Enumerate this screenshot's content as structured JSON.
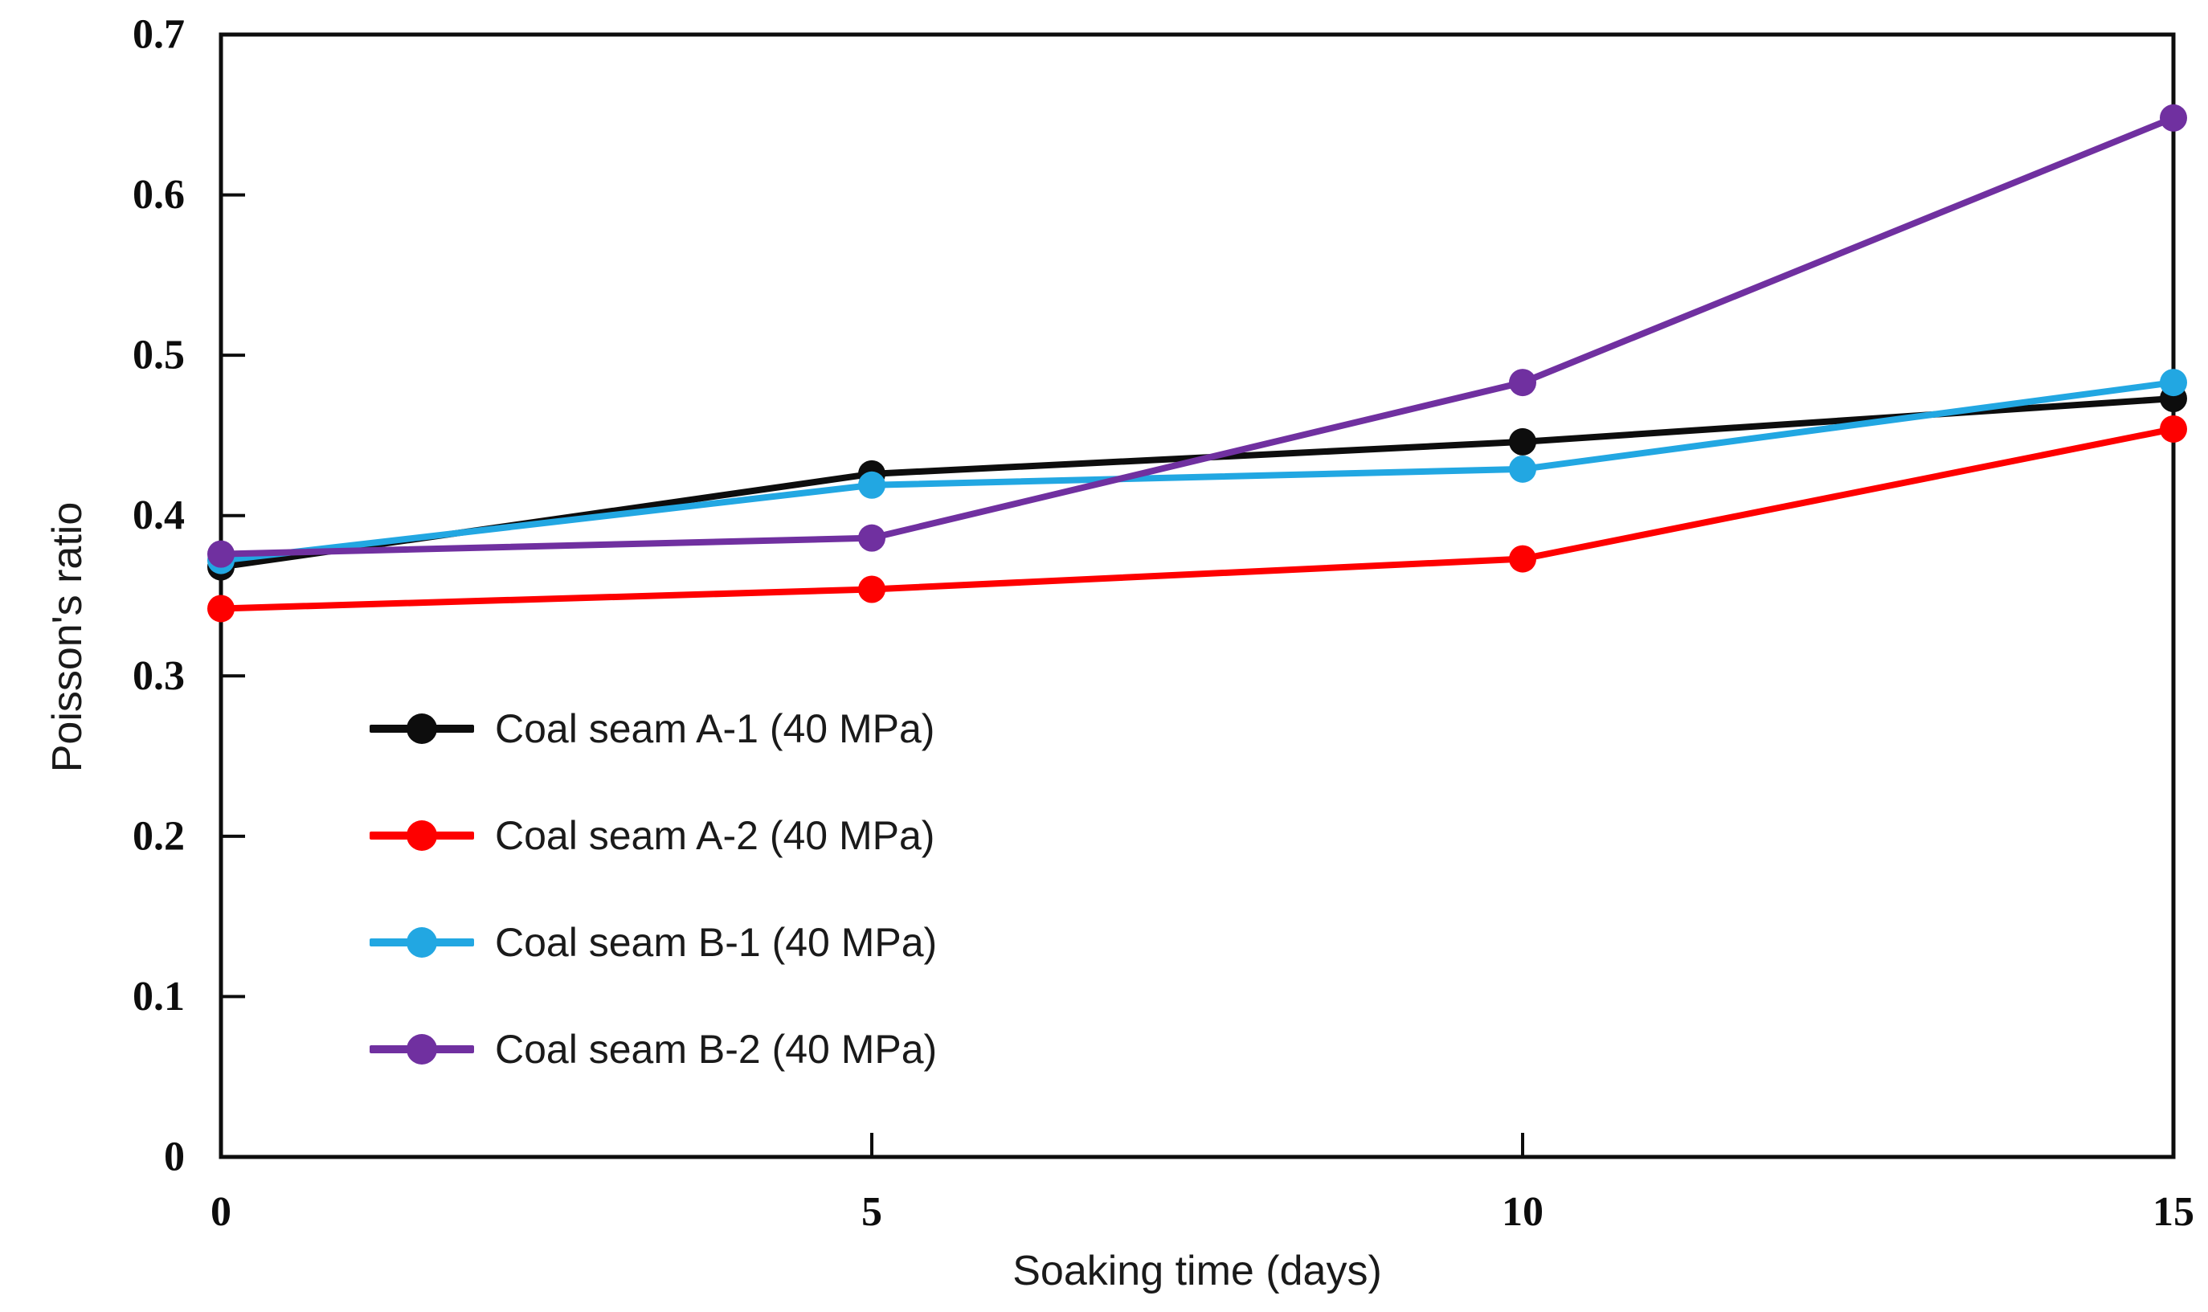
{
  "chart_data": {
    "type": "line",
    "x": [
      0,
      5,
      10,
      15
    ],
    "xlabel": "Soaking time (days)",
    "ylabel": "Poisson's ratio",
    "xlim": [
      0,
      15
    ],
    "ylim": [
      0,
      0.7
    ],
    "x_ticks": [
      0,
      5,
      10,
      15
    ],
    "x_tick_labels": [
      "0",
      "5",
      "10",
      "15"
    ],
    "y_ticks": [
      0,
      0.1,
      0.2,
      0.3,
      0.4,
      0.5,
      0.6,
      0.7
    ],
    "y_tick_labels": [
      "0",
      "0.1",
      "0.2",
      "0.3",
      "0.4",
      "0.5",
      "0.6",
      "0.7"
    ],
    "grid": false,
    "marker": "circle",
    "legend_position": "inside-left-middle",
    "axis_color": "#0d0d0d",
    "series": [
      {
        "name": "Coal seam A-1 (40 MPa)",
        "color": "#0d0d0d",
        "values": [
          0.368,
          0.426,
          0.446,
          0.473
        ]
      },
      {
        "name": "Coal seam A-2 (40 MPa)",
        "color": "#fe0000",
        "values": [
          0.342,
          0.354,
          0.373,
          0.454
        ]
      },
      {
        "name": "Coal seam B-1 (40 MPa)",
        "color": "#22a7e2",
        "values": [
          0.372,
          0.419,
          0.429,
          0.483
        ]
      },
      {
        "name": "Coal seam B-2 (40 MPa)",
        "color": "#7030a0",
        "values": [
          0.376,
          0.386,
          0.483,
          0.648
        ]
      }
    ]
  }
}
